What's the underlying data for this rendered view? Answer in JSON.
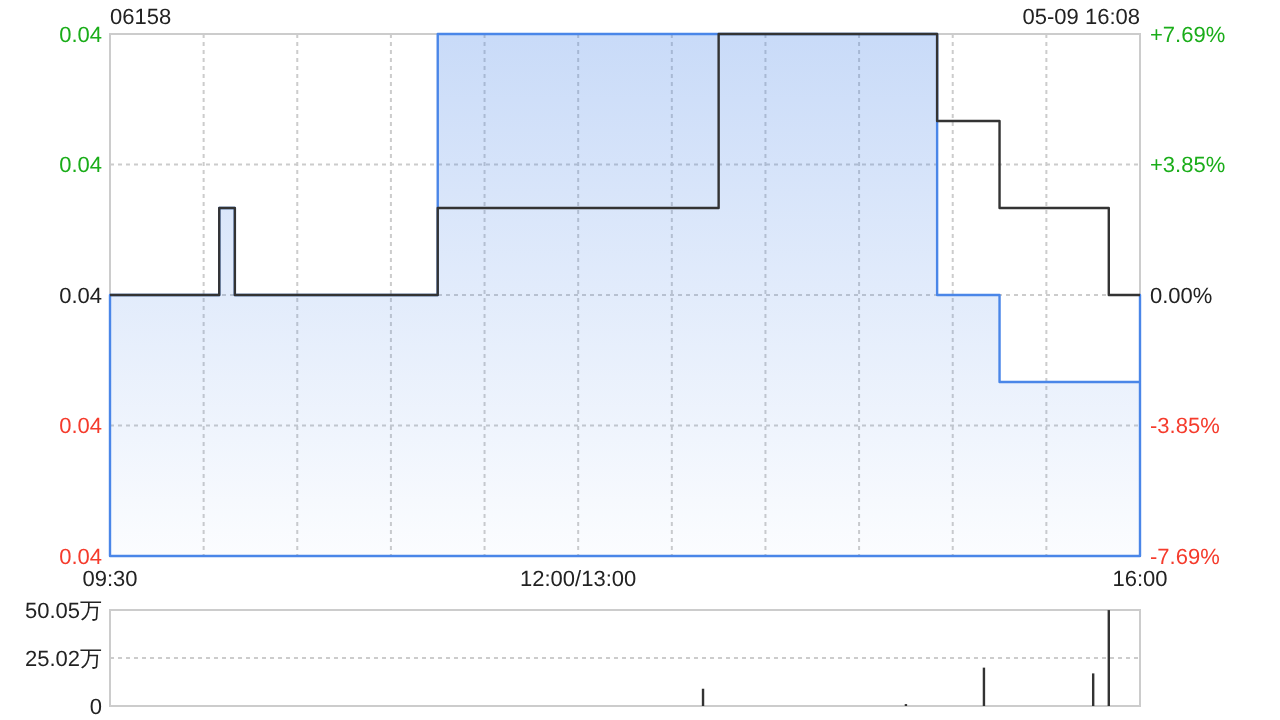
{
  "chart_data": [
    {
      "type": "step",
      "title": "06158",
      "annotations": [
        "05-09 16:08"
      ],
      "categories": [
        "09:30",
        null,
        null,
        null,
        null,
        null,
        null,
        null,
        null,
        null,
        null,
        null,
        null,
        null,
        null,
        null,
        null,
        null,
        null,
        null,
        null,
        null,
        null,
        null,
        null,
        null,
        null,
        null,
        null,
        null,
        "12:00/13:00",
        null,
        null,
        null,
        null,
        null,
        null,
        null,
        null,
        null,
        null,
        null,
        null,
        null,
        null,
        null,
        null,
        null,
        null,
        null,
        null,
        null,
        null,
        null,
        null,
        null,
        null,
        null,
        null,
        null,
        null,
        null,
        null,
        null,
        null,
        null,
        "16:00"
      ],
      "ylim": [
        0.036,
        0.042
      ],
      "yticks": [
        {
          "value": 0.036,
          "label": "0.04"
        },
        {
          "value": 0.0375,
          "label": "0.04"
        },
        {
          "value": 0.039,
          "label": "0.04"
        },
        {
          "value": 0.0405,
          "label": "0.04"
        },
        {
          "value": 0.042,
          "label": "0.04"
        }
      ],
      "y2lim": [
        -7.69,
        7.69
      ],
      "y2ticks": [
        {
          "value": -7.69,
          "label": "-7.69%"
        },
        {
          "value": -3.85,
          "label": "-3.85%"
        },
        {
          "value": 0,
          "label": "0.00%"
        },
        {
          "value": 3.85,
          "label": "+3.85%"
        },
        {
          "value": 7.69,
          "label": "+7.69%"
        }
      ],
      "grid": true,
      "series": [
        {
          "type": "area",
          "color": "#4a86e8",
          "values": [
            0.039,
            0.039,
            0.039,
            0.039,
            0.039,
            0.039,
            0.039,
            0.04,
            0.039,
            0.039,
            0.039,
            0.039,
            0.039,
            0.039,
            0.039,
            0.039,
            0.039,
            0.039,
            0.039,
            0.039,
            0.039,
            0.042,
            0.042,
            0.042,
            0.042,
            0.042,
            0.042,
            0.042,
            0.042,
            0.042,
            0.042,
            0.042,
            0.042,
            0.042,
            0.042,
            0.042,
            0.042,
            0.042,
            0.042,
            0.042,
            0.042,
            0.042,
            0.042,
            0.042,
            0.042,
            0.042,
            0.042,
            0.042,
            0.042,
            0.042,
            0.042,
            0.042,
            0.042,
            0.039,
            0.039,
            0.039,
            0.039,
            0.038,
            0.038,
            0.038,
            0.038,
            0.038,
            0.038,
            0.038,
            0.038,
            0.038,
            0.039
          ]
        },
        {
          "color": "#333333",
          "values": [
            0.039,
            0.039,
            0.039,
            0.039,
            0.039,
            0.039,
            0.039,
            0.04,
            0.039,
            0.039,
            0.039,
            0.039,
            0.039,
            0.039,
            0.039,
            0.039,
            0.039,
            0.039,
            0.039,
            0.039,
            0.039,
            0.04,
            0.04,
            0.04,
            0.04,
            0.04,
            0.04,
            0.04,
            0.04,
            0.04,
            0.04,
            0.04,
            0.04,
            0.04,
            0.04,
            0.04,
            0.04,
            0.04,
            0.04,
            0.042,
            0.042,
            0.042,
            0.042,
            0.042,
            0.042,
            0.042,
            0.042,
            0.042,
            0.042,
            0.042,
            0.042,
            0.042,
            0.042,
            0.041,
            0.041,
            0.041,
            0.041,
            0.04,
            0.04,
            0.04,
            0.04,
            0.04,
            0.04,
            0.04,
            0.039,
            0.039,
            0.039
          ]
        }
      ]
    },
    {
      "type": "bar",
      "categories": [
        null,
        null,
        null,
        null,
        null,
        null,
        null,
        null,
        null,
        null,
        null,
        null,
        null,
        null,
        null,
        null,
        null,
        null,
        null,
        null,
        null,
        null,
        null,
        null,
        null,
        null,
        null,
        null,
        null,
        null,
        null,
        null,
        null,
        null,
        null,
        null,
        null,
        null,
        null,
        null,
        null,
        null,
        null,
        null,
        null,
        null,
        null,
        null,
        null,
        null,
        null,
        null,
        null,
        null,
        null,
        null,
        null,
        null,
        null,
        null,
        null,
        null,
        null,
        null,
        null,
        null,
        null
      ],
      "values": [
        null,
        null,
        null,
        null,
        null,
        null,
        null,
        null,
        null,
        null,
        null,
        null,
        null,
        null,
        null,
        null,
        null,
        null,
        null,
        null,
        null,
        null,
        null,
        null,
        null,
        null,
        null,
        null,
        null,
        null,
        null,
        null,
        null,
        null,
        null,
        null,
        null,
        null,
        9,
        null,
        null,
        null,
        null,
        null,
        null,
        null,
        null,
        null,
        null,
        null,
        null,
        1,
        null,
        null,
        null,
        null,
        20,
        null,
        null,
        null,
        null,
        null,
        null,
        17,
        50,
        null,
        null
      ],
      "color": "#333333",
      "ylim": [
        0,
        50.05
      ],
      "yticks": [
        0,
        {
          "value": 25.02,
          "label": "25.02万"
        },
        {
          "value": 50.05,
          "label": "50.05万"
        }
      ],
      "grid": "y",
      "tick_labels": "y"
    }
  ]
}
